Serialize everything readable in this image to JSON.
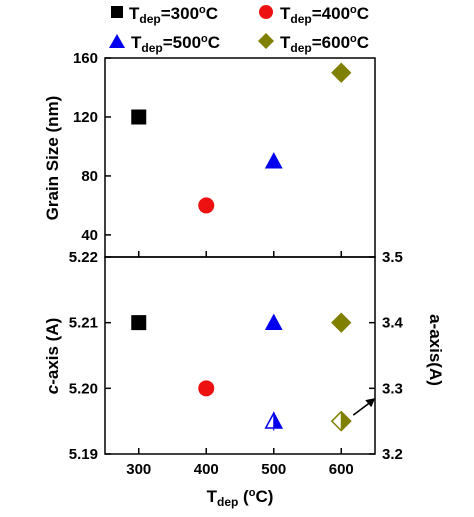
{
  "chart_data": {
    "type": "scatter",
    "legend": {
      "placement": "top",
      "entries": [
        {
          "name": "T_dep=300°C",
          "label_main": "T",
          "label_sub": "dep",
          "label_rest": "=300",
          "label_sup": "o",
          "label_unit": "C",
          "marker": "square",
          "color": "#000000"
        },
        {
          "name": "T_dep=400°C",
          "label_main": "T",
          "label_sub": "dep",
          "label_rest": "=400",
          "label_sup": "o",
          "label_unit": "C",
          "marker": "circle",
          "color": "#ee1111"
        },
        {
          "name": "T_dep=500°C",
          "label_main": "T",
          "label_sub": "dep",
          "label_rest": "=500",
          "label_sup": "o",
          "label_unit": "C",
          "marker": "triangle",
          "color": "#0000ee"
        },
        {
          "name": "T_dep=600°C",
          "label_main": "T",
          "label_sub": "dep",
          "label_rest": "=600",
          "label_sup": "o",
          "label_unit": "C",
          "marker": "diamond",
          "color": "#808000"
        }
      ]
    },
    "xaxis": {
      "label_main": "T",
      "label_sub": "dep",
      "label_open": " (",
      "label_sup": "o",
      "label_unit": "C)",
      "xlim": [
        250,
        650
      ],
      "ticks": [
        "300",
        "400",
        "500",
        "600"
      ]
    },
    "panels": [
      {
        "name": "grain-size",
        "ylabel": "Grain Size (nm)",
        "ylim": [
          25,
          160
        ],
        "yticks": [
          "40",
          "80",
          "120",
          "160"
        ],
        "points": [
          {
            "x": 300,
            "y": 120,
            "marker": "square",
            "color": "#000000",
            "fill": "full"
          },
          {
            "x": 400,
            "y": 60,
            "marker": "circle",
            "color": "#ee1111",
            "fill": "full"
          },
          {
            "x": 500,
            "y": 90,
            "marker": "triangle",
            "color": "#0000ee",
            "fill": "full"
          },
          {
            "x": 600,
            "y": 150,
            "marker": "diamond",
            "color": "#808000",
            "fill": "full"
          }
        ]
      },
      {
        "name": "lattice",
        "ylabel_italic": "c",
        "ylabel_rest": "-axis (A)",
        "ylim": [
          5.19,
          5.22
        ],
        "yticks": [
          "5.19",
          "5.20",
          "5.21",
          "5.22"
        ],
        "ylabel_right": "a-axis(A)",
        "ylim_right": [
          3.2,
          3.5
        ],
        "yticks_right": [
          "3.2",
          "3.3",
          "3.4",
          "3.5"
        ],
        "c_axis_points": [
          {
            "x": 300,
            "y": 5.21,
            "marker": "square",
            "color": "#000000",
            "fill": "full"
          },
          {
            "x": 400,
            "y": 5.2,
            "marker": "circle",
            "color": "#ee1111",
            "fill": "full"
          },
          {
            "x": 500,
            "y": 5.21,
            "marker": "triangle",
            "color": "#0000ee",
            "fill": "full"
          },
          {
            "x": 600,
            "y": 5.21,
            "marker": "diamond",
            "color": "#808000",
            "fill": "full"
          }
        ],
        "a_axis_points": [
          {
            "x": 500,
            "y": 3.25,
            "marker": "triangle",
            "color": "#0000ee",
            "fill": "half-right"
          },
          {
            "x": 600,
            "y": 3.25,
            "marker": "diamond",
            "color": "#808000",
            "fill": "half-right"
          }
        ],
        "annotation": {
          "type": "arrow",
          "points_to": "right axis",
          "near_x": 600,
          "near_y": 3.25
        }
      }
    ]
  }
}
